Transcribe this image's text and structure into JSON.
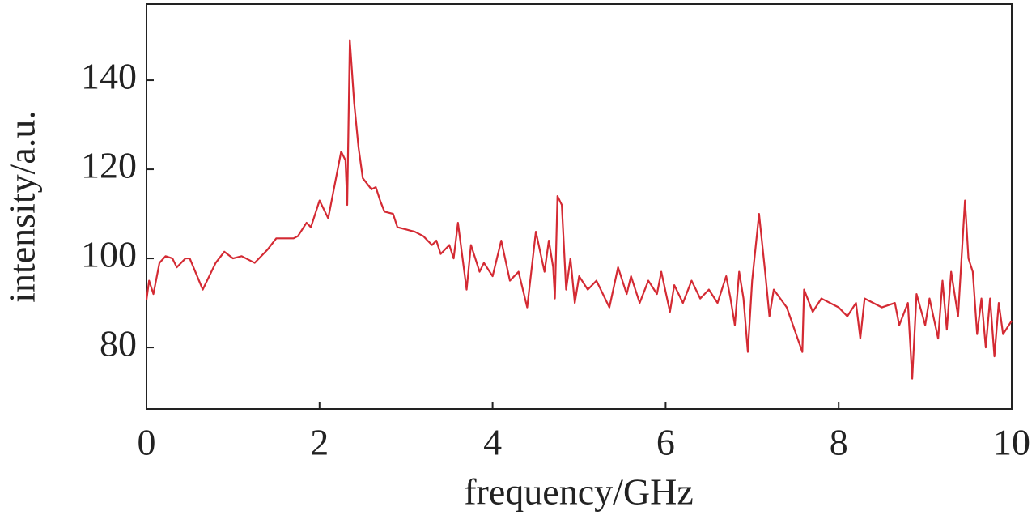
{
  "chart_data": {
    "type": "line",
    "xlabel": "frequency/GHz",
    "ylabel": "intensity/a.u.",
    "x": [
      0,
      0.03,
      0.08,
      0.15,
      0.22,
      0.3,
      0.35,
      0.45,
      0.5,
      0.65,
      0.8,
      0.9,
      1.0,
      1.1,
      1.25,
      1.4,
      1.5,
      1.7,
      1.75,
      1.85,
      1.9,
      1.95,
      2.0,
      2.1,
      2.2,
      2.25,
      2.3,
      2.32,
      2.35,
      2.4,
      2.45,
      2.5,
      2.6,
      2.65,
      2.7,
      2.75,
      2.85,
      2.9,
      3.0,
      3.1,
      3.2,
      3.3,
      3.35,
      3.4,
      3.5,
      3.55,
      3.6,
      3.7,
      3.75,
      3.85,
      3.9,
      4.0,
      4.1,
      4.2,
      4.3,
      4.4,
      4.5,
      4.6,
      4.65,
      4.7,
      4.72,
      4.75,
      4.8,
      4.85,
      4.9,
      4.95,
      5.0,
      5.1,
      5.2,
      5.35,
      5.45,
      5.55,
      5.6,
      5.7,
      5.8,
      5.9,
      5.95,
      6.05,
      6.1,
      6.2,
      6.3,
      6.4,
      6.5,
      6.6,
      6.7,
      6.75,
      6.8,
      6.85,
      6.9,
      6.95,
      7.0,
      7.08,
      7.15,
      7.2,
      7.25,
      7.4,
      7.58,
      7.6,
      7.7,
      7.8,
      8.0,
      8.1,
      8.2,
      8.25,
      8.3,
      8.5,
      8.65,
      8.7,
      8.8,
      8.85,
      8.9,
      9.0,
      9.05,
      9.15,
      9.2,
      9.25,
      9.3,
      9.38,
      9.42,
      9.46,
      9.5,
      9.55,
      9.6,
      9.65,
      9.7,
      9.75,
      9.8,
      9.85,
      9.9,
      10
    ],
    "values": [
      90.7,
      95,
      92,
      99,
      100.5,
      100,
      98,
      100,
      100,
      93,
      99,
      101.5,
      100,
      100.5,
      99,
      102,
      104.5,
      104.5,
      105,
      108,
      107,
      110,
      113,
      109,
      119,
      124,
      122,
      112,
      149,
      135,
      125,
      118,
      115.5,
      116,
      113,
      110.5,
      110,
      107,
      106.5,
      106,
      105,
      103,
      104,
      101,
      103,
      100,
      108,
      93,
      103,
      97,
      99,
      96,
      104,
      95,
      97,
      89,
      106,
      97,
      104,
      98,
      91,
      114,
      112,
      93,
      100,
      90,
      96,
      93,
      95,
      89,
      98,
      92,
      96,
      90,
      95,
      92,
      97,
      88,
      94,
      90,
      95,
      91,
      93,
      90,
      96,
      91,
      85,
      97,
      91,
      79,
      95,
      110,
      97,
      87,
      93,
      89,
      79,
      93,
      88,
      91,
      89,
      87,
      90,
      82,
      91,
      89,
      90,
      85,
      90,
      73,
      92,
      85,
      91,
      82,
      95,
      84,
      97,
      87,
      100,
      113,
      100,
      97,
      83,
      91,
      80,
      91,
      78,
      90,
      83,
      86
    ],
    "color": "#d42a33",
    "xlim": [
      0,
      10
    ],
    "xticks": [
      0,
      2,
      4,
      6,
      8,
      10
    ],
    "ylim": [
      66.2,
      157.1
    ],
    "yticks": [
      80,
      100,
      120,
      140
    ]
  }
}
